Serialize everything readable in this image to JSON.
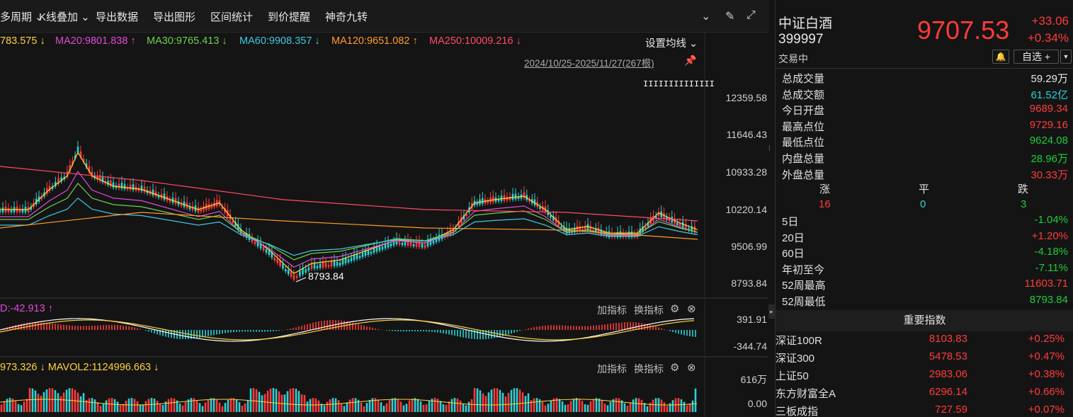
{
  "toolbar": {
    "items": [
      "多周期",
      "K线叠加",
      "导出数据",
      "导出图形",
      "区间统计",
      "到价提醒",
      "神奇九转"
    ]
  },
  "ma_legend": {
    "ma_first": "783.575 ↓",
    "ma20": "MA20:9801.838 ↑",
    "ma30": "MA30:9765.413 ↓",
    "ma60": "MA60:9908.357 ↓",
    "ma120": "MA120:9651.082 ↑",
    "ma250": "MA250:10009.216 ↓",
    "setting": "设置均线",
    "colors": {
      "ma_first": "#ffd23a",
      "ma20": "#e04ad8",
      "ma30": "#6ad24a",
      "ma60": "#40c8e0",
      "ma120": "#ff9a2a",
      "ma250": "#ff4a6a"
    }
  },
  "range_label": "2024/10/25-2025/11/27(267根)",
  "price_axis": [
    "12359.58",
    "11646.43",
    "10933.28",
    "10220.14",
    "9506.99",
    "8793.84"
  ],
  "low_marker": "8793.84",
  "macd": {
    "label": "D:-42.913 ↑",
    "axis": [
      "391.91",
      "-344.74"
    ],
    "add_label": "加指标",
    "switch_label": "换指标"
  },
  "vol": {
    "label": "973.326 ↓ MAVOL2:1124996.663 ↓",
    "axis": [
      "616万",
      "0.00"
    ],
    "add_label": "加指标",
    "switch_label": "换指标"
  },
  "quote": {
    "name": "中证白酒",
    "code": "399997",
    "status": "交易中",
    "price": "9707.53",
    "change": "+33.06",
    "change_pct": "+0.34%",
    "fav": "自选 +"
  },
  "stats": [
    {
      "k": "总成交量",
      "v": "59.29万",
      "c": "white"
    },
    {
      "k": "总成交额",
      "v": "61.52亿",
      "c": "cyan"
    },
    {
      "k": "今日开盘",
      "v": "9689.34",
      "c": "red"
    },
    {
      "k": "最高点位",
      "v": "9729.16",
      "c": "red"
    },
    {
      "k": "最低点位",
      "v": "9624.08",
      "c": "green"
    },
    {
      "k": "内盘总量",
      "v": "28.96万",
      "c": "green"
    },
    {
      "k": "外盘总量",
      "v": "30.33万",
      "c": "red"
    }
  ],
  "breadth": {
    "labels": [
      "涨",
      "平",
      "跌"
    ],
    "values": [
      "16",
      "0",
      "3"
    ]
  },
  "perf": [
    {
      "k": "5日",
      "v": "-1.04%",
      "c": "green"
    },
    {
      "k": "20日",
      "v": "+1.20%",
      "c": "red"
    },
    {
      "k": "60日",
      "v": "-4.18%",
      "c": "green"
    },
    {
      "k": "年初至今",
      "v": "-7.11%",
      "c": "green"
    },
    {
      "k": "52周最高",
      "v": "11603.71",
      "c": "red"
    },
    {
      "k": "52周最低",
      "v": "8793.84",
      "c": "green"
    }
  ],
  "important_header": "重要指数",
  "indices": [
    {
      "n": "深证100R",
      "p": "8103.83",
      "c": "+0.25%"
    },
    {
      "n": "深证300",
      "p": "5478.53",
      "c": "+0.47%"
    },
    {
      "n": "上证50",
      "p": "2983.06",
      "c": "+0.38%"
    },
    {
      "n": "东方财富全A",
      "p": "6296.14",
      "c": "+0.66%"
    },
    {
      "n": "三板成指",
      "p": "727.59",
      "c": "+0.07%"
    }
  ]
}
